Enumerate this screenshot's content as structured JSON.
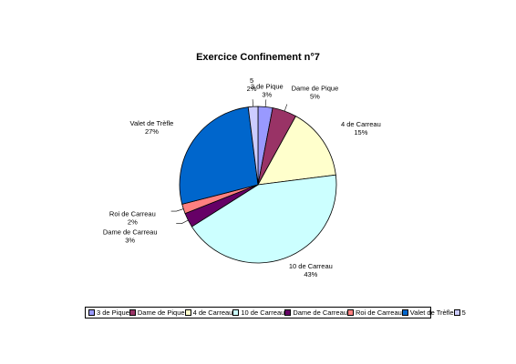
{
  "chart_data": {
    "type": "pie",
    "title": "Exercice Confinement n°7",
    "slices": [
      {
        "label": "3 de Pique",
        "value": 3,
        "pct_label": "3%",
        "color": "#9999ff"
      },
      {
        "label": "Dame de Pique",
        "value": 5,
        "pct_label": "5%",
        "color": "#993366"
      },
      {
        "label": "4 de Carreau",
        "value": 15,
        "pct_label": "15%",
        "color": "#ffffcc"
      },
      {
        "label": "10 de Carreau",
        "value": 43,
        "pct_label": "43%",
        "color": "#ccffff"
      },
      {
        "label": "Dame de Carreau",
        "value": 3,
        "pct_label": "3%",
        "color": "#660066"
      },
      {
        "label": "Roi de Carreau",
        "value": 2,
        "pct_label": "2%",
        "color": "#ff8080"
      },
      {
        "label": "Valet de Trèfle",
        "value": 27,
        "pct_label": "27%",
        "color": "#0066cc"
      },
      {
        "label": "5",
        "value": 2,
        "pct_label": "2%",
        "color": "#ccccff"
      }
    ],
    "legend_position": "bottom",
    "start_angle": "12 o'clock",
    "direction": "clockwise"
  }
}
